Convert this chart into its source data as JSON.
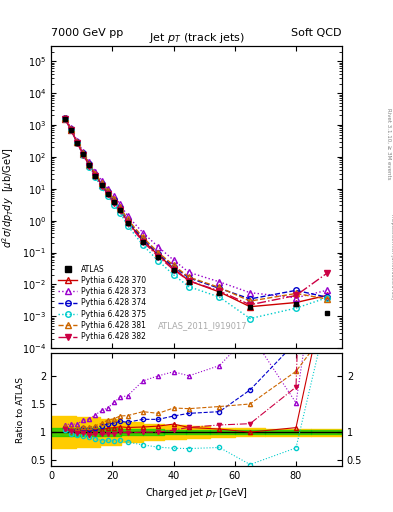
{
  "title_left": "7000 GeV pp",
  "title_right": "Soft QCD",
  "plot_title": "Jet p_{T} (track jets)",
  "ylabel_main": "d^{2}sigma/dp_{T}dy  [mu b/GeV]",
  "ylabel_ratio": "Ratio to ATLAS",
  "xlabel": "Charged jet p_{T} [GeV]",
  "watermark": "ATLAS_2011_I919017",
  "rivet_label": "Rivet 3.1.10, ≥ 3M events",
  "mcplots_label": "mcplots.cern.ch [arXiv:1306.3436]",
  "xlim": [
    0,
    95
  ],
  "ylim_main": [
    0.0001,
    300000.0
  ],
  "ylim_ratio": [
    0.4,
    2.4
  ],
  "atlas_pt": [
    4.5,
    6.5,
    8.5,
    10.5,
    12.5,
    14.5,
    16.5,
    18.5,
    20.5,
    22.5,
    25.0,
    30.0,
    35.0,
    40.0,
    45.0,
    55.0,
    65.0,
    80.0,
    90.0
  ],
  "atlas_val": [
    1500,
    700,
    280,
    120,
    55,
    26,
    13,
    7.0,
    3.8,
    2.1,
    0.85,
    0.22,
    0.075,
    0.028,
    0.012,
    0.0055,
    0.002,
    0.0025,
    0.00125
  ],
  "py370_pt": [
    4.5,
    6.5,
    8.5,
    10.5,
    12.5,
    14.5,
    16.5,
    18.5,
    20.5,
    22.5,
    25.0,
    30.0,
    35.0,
    40.0,
    45.0,
    55.0,
    65.0,
    80.0,
    90.0
  ],
  "py370_val": [
    1600,
    720,
    285,
    125,
    56,
    27,
    13.5,
    7.5,
    4.1,
    2.3,
    0.92,
    0.24,
    0.083,
    0.032,
    0.013,
    0.0058,
    0.002,
    0.0027,
    0.0045
  ],
  "py373_pt": [
    4.5,
    6.5,
    8.5,
    10.5,
    12.5,
    14.5,
    16.5,
    18.5,
    20.5,
    22.5,
    25.0,
    30.0,
    35.0,
    40.0,
    45.0,
    55.0,
    65.0,
    80.0,
    90.0
  ],
  "py373_val": [
    1700,
    800,
    320,
    145,
    68,
    34,
    18,
    10,
    5.8,
    3.4,
    1.4,
    0.42,
    0.15,
    0.058,
    0.024,
    0.012,
    0.0055,
    0.0038,
    0.0065
  ],
  "py374_pt": [
    4.5,
    6.5,
    8.5,
    10.5,
    12.5,
    14.5,
    16.5,
    18.5,
    20.5,
    22.5,
    25.0,
    30.0,
    35.0,
    40.0,
    45.0,
    55.0,
    65.0,
    80.0,
    90.0
  ],
  "py374_val": [
    1620,
    730,
    290,
    128,
    58,
    28,
    14.5,
    8.0,
    4.4,
    2.5,
    1.0,
    0.27,
    0.092,
    0.036,
    0.016,
    0.0075,
    0.0035,
    0.0065,
    0.004
  ],
  "py375_pt": [
    4.5,
    6.5,
    8.5,
    10.5,
    12.5,
    14.5,
    16.5,
    18.5,
    20.5,
    22.5,
    25.0,
    30.0,
    35.0,
    40.0,
    45.0,
    55.0,
    65.0,
    80.0,
    90.0
  ],
  "py375_val": [
    1550,
    680,
    265,
    112,
    50,
    23,
    11,
    6.0,
    3.2,
    1.8,
    0.7,
    0.17,
    0.055,
    0.02,
    0.0085,
    0.004,
    0.00085,
    0.0018,
    0.0038
  ],
  "py381_pt": [
    4.5,
    6.5,
    8.5,
    10.5,
    12.5,
    14.5,
    16.5,
    18.5,
    20.5,
    22.5,
    25.0,
    30.0,
    35.0,
    40.0,
    45.0,
    55.0,
    65.0,
    80.0,
    90.0
  ],
  "py381_val": [
    1650,
    750,
    300,
    130,
    60,
    29,
    15,
    8.5,
    4.7,
    2.7,
    1.1,
    0.3,
    0.1,
    0.04,
    0.017,
    0.008,
    0.003,
    0.0052,
    0.0035
  ],
  "py382_pt": [
    4.5,
    6.5,
    8.5,
    10.5,
    12.5,
    14.5,
    16.5,
    18.5,
    20.5,
    22.5,
    25.0,
    30.0,
    35.0,
    40.0,
    45.0,
    55.0,
    65.0,
    80.0,
    90.0
  ],
  "py382_val": [
    1580,
    710,
    275,
    118,
    52,
    25,
    12.5,
    6.8,
    3.7,
    2.1,
    0.84,
    0.22,
    0.075,
    0.029,
    0.013,
    0.0062,
    0.0023,
    0.0045,
    0.022
  ],
  "color_atlas": "#000000",
  "color_370": "#cc0000",
  "color_373": "#9900cc",
  "color_374": "#0000cc",
  "color_375": "#00cccc",
  "color_381": "#cc6600",
  "color_382": "#cc0044",
  "green_band_color": "#00cc00",
  "yellow_band_color": "#ffcc00",
  "band_edges": [
    0,
    8,
    16,
    23,
    30,
    37,
    44,
    52,
    60,
    70,
    85,
    95
  ],
  "green_lo_vals": [
    0.93,
    0.93,
    0.93,
    0.95,
    0.95,
    0.96,
    0.96,
    0.97,
    0.97,
    0.97,
    0.97
  ],
  "green_hi_vals": [
    1.07,
    1.07,
    1.07,
    1.05,
    1.05,
    1.04,
    1.04,
    1.03,
    1.03,
    1.03,
    1.03
  ],
  "yellow_lo_vals": [
    0.72,
    0.73,
    0.77,
    0.82,
    0.86,
    0.88,
    0.9,
    0.92,
    0.93,
    0.94,
    0.94
  ],
  "yellow_hi_vals": [
    1.28,
    1.27,
    1.23,
    1.18,
    1.14,
    1.12,
    1.1,
    1.08,
    1.07,
    1.06,
    1.06
  ]
}
